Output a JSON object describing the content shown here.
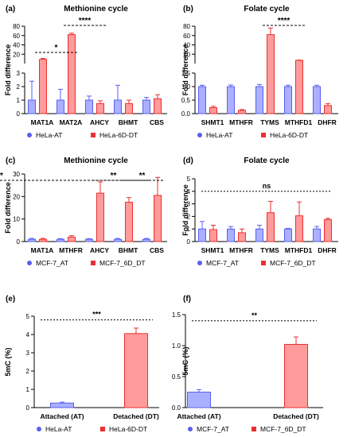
{
  "colors": {
    "blue": "#5a5ff0",
    "blue_fill": "#aab0ff",
    "red": "#ee2f2f",
    "red_fill": "#ff9b9b"
  },
  "chart_data": [
    {
      "panel": "(a)",
      "type": "bar",
      "title": "Methionine cycle",
      "ylabel": "Fold difference",
      "split_axis": true,
      "categories": [
        "MAT1A",
        "MAT2A",
        "AHCY",
        "BHMT",
        "CBS"
      ],
      "yticks": [
        "0",
        "1",
        "2",
        "3",
        "20",
        "40",
        "60",
        "80"
      ],
      "series": [
        {
          "name": "HeLa-AT",
          "values": [
            1.0,
            1.0,
            1.0,
            1.0,
            1.0
          ],
          "err": [
            1.4,
            0.8,
            0.3,
            1.1,
            0.2
          ]
        },
        {
          "name": "HeLa-6D-DT",
          "values": [
            9,
            62,
            0.75,
            0.75,
            1.1
          ],
          "err": [
            2,
            3,
            0.2,
            0.25,
            0.3
          ]
        }
      ],
      "annotations": [
        {
          "text": "*",
          "from": 0,
          "to": 0.5
        },
        {
          "text": "****",
          "from": 1,
          "to": 1.5
        }
      ]
    },
    {
      "panel": "(b)",
      "type": "bar",
      "title": "Folate cycle",
      "ylabel": "Fold difference",
      "split_axis": true,
      "categories": [
        "SHMT1",
        "MTHFR",
        "TYMS",
        "MTHFD1",
        "DHFR"
      ],
      "yticks": [
        "0.0",
        "0.5",
        "1.0",
        "1.5",
        "20",
        "40",
        "60",
        "80"
      ],
      "series": [
        {
          "name": "HeLa-AT",
          "values": [
            1.0,
            1.0,
            1.0,
            1.0,
            1.0
          ],
          "err": [
            0.05,
            0.06,
            0.08,
            0.05,
            0.05
          ]
        },
        {
          "name": "HeLa-6D-DT",
          "values": [
            0.22,
            0.12,
            62,
            7,
            0.3
          ],
          "err": [
            0.05,
            0.03,
            14,
            0.5,
            0.07
          ]
        }
      ],
      "annotations": [
        {
          "text": "****",
          "from": 2,
          "to": 2.5
        }
      ]
    },
    {
      "panel": "(c)",
      "type": "bar",
      "title": "Methionine cycle",
      "ylabel": "Fold difference",
      "ylim": [
        0,
        30
      ],
      "categories": [
        "MAT1A",
        "MTHFR",
        "AHCY",
        "BHMT",
        "CBS"
      ],
      "yticks": [
        "0",
        "10",
        "20",
        "30"
      ],
      "series": [
        {
          "name": "MCF-7_AT",
          "values": [
            1.0,
            1.0,
            1.0,
            1.0,
            1.0
          ],
          "err": [
            0.4,
            0.3,
            0.3,
            0.4,
            0.4
          ]
        },
        {
          "name": "MCF-7_6D_DT",
          "values": [
            1.0,
            2.0,
            21.5,
            17.5,
            20.5
          ],
          "err": [
            0.4,
            0.6,
            5.0,
            2.0,
            8.0
          ]
        }
      ],
      "annotations": [
        {
          "text": "**",
          "from": 2,
          "to": 2.5
        },
        {
          "text": "**",
          "from": 3,
          "to": 3.5
        },
        {
          "text": "**",
          "from": 4,
          "to": 4.5
        }
      ]
    },
    {
      "panel": "(d)",
      "type": "bar",
      "title": "Folate cycle",
      "ylabel": "Fold difference",
      "ylim": [
        0,
        5
      ],
      "categories": [
        "SHMT1",
        "MTHFR",
        "TYMS",
        "MTHFD1",
        "DHFR"
      ],
      "yticks": [
        "0",
        "1",
        "2",
        "3",
        "4",
        "5"
      ],
      "series": [
        {
          "name": "MCF-7_AT",
          "values": [
            1.0,
            1.0,
            1.0,
            1.0,
            1.0
          ],
          "err": [
            0.6,
            0.2,
            0.3,
            0.05,
            0.2
          ]
        },
        {
          "name": "MCF-7_6D_DT",
          "values": [
            0.95,
            0.7,
            2.3,
            2.05,
            1.75
          ],
          "err": [
            0.35,
            0.3,
            0.9,
            1.1,
            0.1
          ]
        }
      ],
      "annotations": [
        {
          "text": "ns",
          "line": 4.0
        }
      ]
    },
    {
      "panel": "(e)",
      "type": "bar",
      "title": "",
      "ylabel": "5mC (%)",
      "ylim": [
        0,
        5
      ],
      "categories": [
        "Attached (AT)",
        "Detached (DT)"
      ],
      "yticks": [
        "0",
        "1",
        "2",
        "3",
        "4",
        "5"
      ],
      "series": [
        {
          "name": "HeLa-AT",
          "values": [
            0.25,
            null
          ],
          "err": [
            0.05,
            null
          ]
        },
        {
          "name": "HeLa-6D-DT",
          "values": [
            null,
            4.05
          ],
          "err": [
            null,
            0.3
          ]
        }
      ],
      "annotations": [
        {
          "text": "***",
          "line": 4.8
        }
      ]
    },
    {
      "panel": "(f)",
      "type": "bar",
      "title": "",
      "ylabel": "5mC (%)",
      "ylim": [
        0,
        1.5
      ],
      "categories": [
        "Attached (AT)",
        "Detached (DT)"
      ],
      "yticks": [
        "0.0",
        "0.5",
        "1.0",
        "1.5"
      ],
      "series": [
        {
          "name": "MCF-7_AT",
          "values": [
            0.25,
            null
          ],
          "err": [
            0.04,
            null
          ]
        },
        {
          "name": "MCF-7_6D_DT",
          "values": [
            null,
            1.02
          ],
          "err": [
            null,
            0.12
          ]
        }
      ],
      "annotations": [
        {
          "text": "**",
          "line": 1.4
        }
      ]
    }
  ]
}
